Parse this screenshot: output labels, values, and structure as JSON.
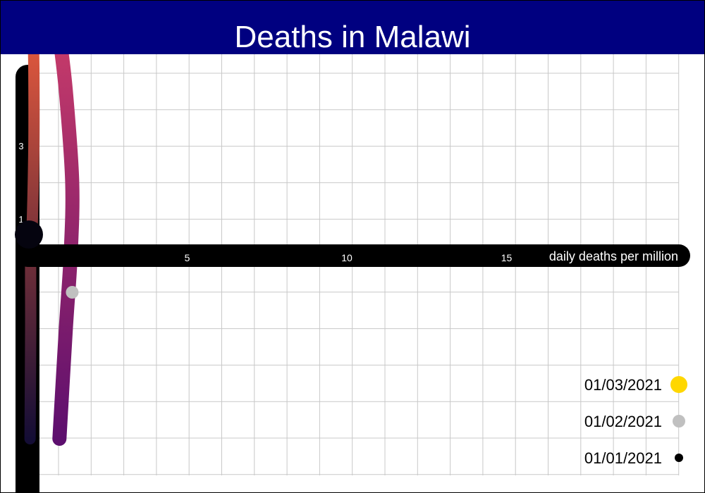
{
  "title": "Deaths in Malawi",
  "colors": {
    "title_background": "#000080",
    "grid": "#c8c8c8",
    "axis": "#000000",
    "axis_text": "#ffffff"
  },
  "chart_data": {
    "type": "line",
    "title": "Deaths in Malawi",
    "xlabel": "daily deaths per million",
    "ylabel": "",
    "grid": true,
    "x_ticks": [
      {
        "value": 5,
        "label": "5"
      },
      {
        "value": 10,
        "label": "10"
      },
      {
        "value": 15,
        "label": "15"
      }
    ],
    "y_ticks": [
      {
        "value": 3,
        "label": "3"
      },
      {
        "value": 1,
        "label": "1"
      }
    ],
    "xlim": [
      0,
      20
    ],
    "ylim": [
      -5,
      6
    ],
    "series": [
      {
        "color_start": "#140d35",
        "color_end": "#e3593d",
        "points": [
          {
            "x": 0.08,
            "y": -5.0
          },
          {
            "x": 0.1,
            "y": -2.0
          },
          {
            "x": 0.1,
            "y": 0.0
          },
          {
            "x": 0.15,
            "y": 0.9
          },
          {
            "x": 0.2,
            "y": 3.0
          },
          {
            "x": 0.2,
            "y": 5.0
          },
          {
            "x": 0.18,
            "y": 6.0
          }
        ]
      },
      {
        "color_start": "#5d0f6e",
        "color_end": "#c73b69",
        "points": [
          {
            "x": 1.0,
            "y": -5.0
          },
          {
            "x": 1.2,
            "y": -2.0
          },
          {
            "x": 1.35,
            "y": 0.0
          },
          {
            "x": 1.4,
            "y": 2.0
          },
          {
            "x": 1.2,
            "y": 4.5
          },
          {
            "x": 1.0,
            "y": 6.0
          }
        ]
      }
    ],
    "markers": [
      {
        "x": 1.4,
        "y": -1.0,
        "color": "#c0c0c0"
      }
    ],
    "legend": {
      "position": "bottom-right",
      "entries": [
        {
          "label": "01/03/2021",
          "color": "#ffd700",
          "size": "large"
        },
        {
          "label": "01/02/2021",
          "color": "#c0c0c0",
          "size": "medium"
        },
        {
          "label": "01/01/2021",
          "color": "#000000",
          "size": "small"
        }
      ]
    }
  }
}
